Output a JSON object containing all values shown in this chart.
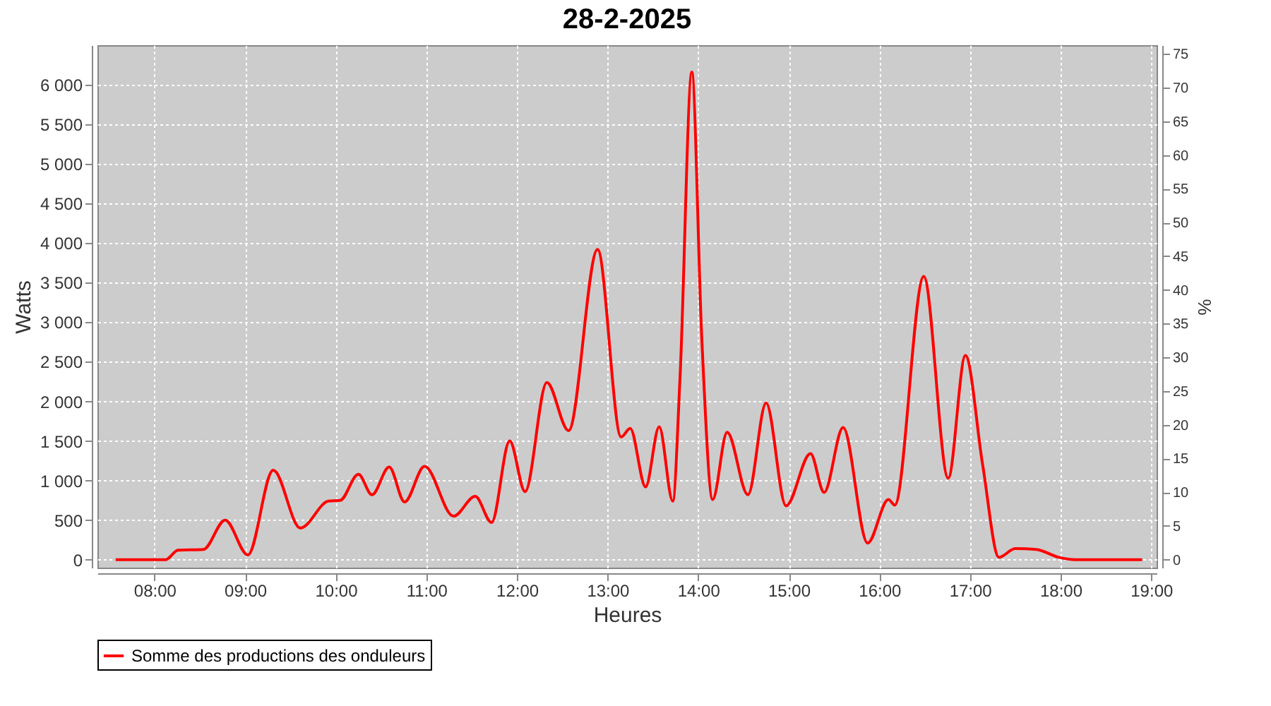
{
  "chart_data": {
    "type": "line",
    "title": "28-2-2025",
    "xlabel": "Heures",
    "ylabel": "Watts",
    "y2label": "%",
    "x": [
      7.57,
      8.12,
      8.26,
      8.54,
      8.78,
      9.03,
      9.31,
      9.61,
      9.92,
      10.05,
      10.25,
      10.4,
      10.59,
      10.76,
      10.98,
      11.3,
      11.54,
      11.72,
      11.92,
      12.09,
      12.33,
      12.57,
      12.89,
      13.15,
      13.25,
      13.42,
      13.57,
      13.72,
      13.8,
      13.93,
      14.04,
      14.16,
      14.32,
      14.55,
      14.75,
      14.97,
      15.24,
      15.39,
      15.6,
      15.87,
      16.1,
      16.17,
      16.49,
      16.76,
      16.95,
      17.14,
      17.32,
      17.5,
      17.73,
      17.98,
      18.16,
      18.9
    ],
    "series": [
      {
        "name": "Somme des productions des onduleurs",
        "color": "#ff0000",
        "values": [
          0,
          0,
          120,
          130,
          500,
          60,
          1130,
          400,
          740,
          750,
          1080,
          820,
          1170,
          730,
          1180,
          550,
          800,
          470,
          1500,
          860,
          2240,
          1630,
          3920,
          1550,
          1660,
          920,
          1680,
          740,
          2300,
          6160,
          2800,
          760,
          1610,
          820,
          1980,
          680,
          1340,
          850,
          1670,
          210,
          760,
          690,
          3580,
          1030,
          2580,
          1200,
          30,
          140,
          130,
          30,
          0,
          0
        ]
      }
    ],
    "xlim": [
      7.37,
      19.06
    ],
    "xticks": [
      {
        "value": 8,
        "label": "08:00"
      },
      {
        "value": 9,
        "label": "09:00"
      },
      {
        "value": 10,
        "label": "10:00"
      },
      {
        "value": 11,
        "label": "11:00"
      },
      {
        "value": 12,
        "label": "12:00"
      },
      {
        "value": 13,
        "label": "13:00"
      },
      {
        "value": 14,
        "label": "14:00"
      },
      {
        "value": 15,
        "label": "15:00"
      },
      {
        "value": 16,
        "label": "16:00"
      },
      {
        "value": 17,
        "label": "17:00"
      },
      {
        "value": 18,
        "label": "18:00"
      },
      {
        "value": 19,
        "label": "19:00"
      }
    ],
    "ylim": [
      -100,
      6500
    ],
    "yticks": [
      0,
      500,
      {
        "value": 1000,
        "label": "1 000"
      },
      {
        "value": 1500,
        "label": "1 500"
      },
      {
        "value": 2000,
        "label": "2 000"
      },
      {
        "value": 2500,
        "label": "2 500"
      },
      {
        "value": 3000,
        "label": "3 000"
      },
      {
        "value": 3500,
        "label": "3 500"
      },
      {
        "value": 4000,
        "label": "4 000"
      },
      {
        "value": 4500,
        "label": "4 500"
      },
      {
        "value": 5000,
        "label": "5 000"
      },
      {
        "value": 5500,
        "label": "5 500"
      },
      {
        "value": 6000,
        "label": "6 000"
      }
    ],
    "y2lim": [
      -1.2,
      76.3
    ],
    "y2ticks": [
      0,
      5,
      10,
      15,
      20,
      25,
      30,
      35,
      40,
      45,
      50,
      55,
      60,
      65,
      70,
      75
    ],
    "grid": true,
    "legend": "bottom",
    "marker": "none",
    "line_style": "solid"
  }
}
